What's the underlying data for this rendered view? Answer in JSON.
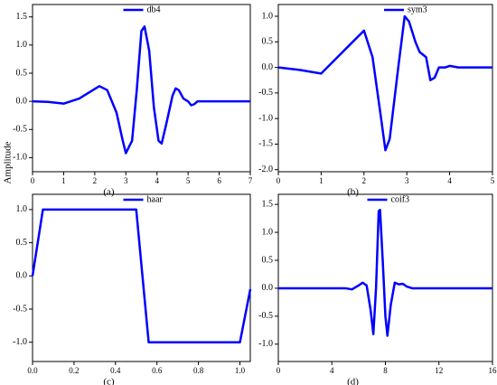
{
  "ylabel": "Amplitude",
  "chart_data": [
    {
      "type": "line",
      "caption": "(a)",
      "legend": "upper center",
      "xlim": [
        0,
        7
      ],
      "xticks": [
        0,
        1,
        2,
        3,
        4,
        5,
        6,
        7
      ],
      "ylim": [
        -1.25,
        1.72
      ],
      "yticks": [
        {
          "value": -1,
          "label": "-1.0"
        },
        -0.5,
        {
          "value": 0,
          "label": "0.0"
        },
        0.5,
        {
          "value": 1,
          "label": "1.0"
        },
        1.5
      ],
      "x": [
        0,
        0.5,
        1,
        1.5,
        2,
        2.15,
        2.4,
        2.7,
        2.9,
        3.0,
        3.2,
        3.35,
        3.5,
        3.6,
        3.75,
        3.9,
        4.05,
        4.15,
        4.3,
        4.5,
        4.6,
        4.7,
        4.85,
        5.0,
        5.1,
        5.2,
        5.3,
        6,
        7
      ],
      "series": [
        {
          "name": "db4",
          "color": "#0000ff",
          "values": [
            0,
            -0.01,
            -0.04,
            0.05,
            0.22,
            0.27,
            0.2,
            -0.2,
            -0.7,
            -0.92,
            -0.7,
            0.2,
            1.25,
            1.33,
            0.9,
            -0.1,
            -0.7,
            -0.75,
            -0.4,
            0.1,
            0.23,
            0.2,
            0.05,
            0.0,
            -0.07,
            -0.05,
            0.0,
            0,
            0
          ]
        }
      ]
    },
    {
      "type": "line",
      "caption": "(b)",
      "legend": "upper right",
      "xlim": [
        0,
        5
      ],
      "xticks": [
        0,
        1,
        2,
        3,
        4,
        5
      ],
      "ylim": [
        -2.04,
        1.23
      ],
      "yticks": [
        {
          "value": -2,
          "label": "-2.0"
        },
        -1.5,
        {
          "value": -1,
          "label": "-1.0"
        },
        -0.5,
        {
          "value": 0,
          "label": "0.0"
        },
        0.5,
        {
          "value": 1,
          "label": "1.0"
        }
      ],
      "x": [
        0,
        0.5,
        1,
        1.5,
        2,
        2.2,
        2.4,
        2.5,
        2.6,
        2.8,
        2.95,
        3.05,
        3.2,
        3.3,
        3.45,
        3.55,
        3.65,
        3.75,
        3.9,
        4,
        4.2,
        4.5,
        5
      ],
      "series": [
        {
          "name": "sym3",
          "color": "#0000ff",
          "values": [
            0,
            -0.05,
            -0.12,
            0.3,
            0.72,
            0.2,
            -1.0,
            -1.62,
            -1.4,
            0,
            1.0,
            0.9,
            0.5,
            0.3,
            0.2,
            -0.25,
            -0.2,
            0,
            0,
            0.03,
            0,
            0,
            0
          ]
        }
      ]
    },
    {
      "type": "line",
      "caption": "(c)",
      "legend": "upper center",
      "xlim": [
        0,
        1.05
      ],
      "xticks": [
        {
          "value": 0,
          "label": "0.0"
        },
        0.2,
        0.4,
        0.6,
        0.8,
        {
          "value": 1,
          "label": "1.0"
        }
      ],
      "ylim": [
        -1.29,
        1.23
      ],
      "yticks": [
        {
          "value": -1,
          "label": "-1.0"
        },
        -0.5,
        {
          "value": 0,
          "label": "0.0"
        },
        0.5,
        {
          "value": 1,
          "label": "1.0"
        }
      ],
      "x": [
        0,
        0.05,
        0.5,
        0.56,
        1.0,
        1.05
      ],
      "series": [
        {
          "name": "haar",
          "color": "#0000ff",
          "values": [
            0,
            1,
            1,
            -1,
            -1,
            -0.2
          ]
        }
      ]
    },
    {
      "type": "line",
      "caption": "(d)",
      "legend": "upper center",
      "xlim": [
        0,
        16
      ],
      "xticks": [
        0,
        4,
        8,
        12,
        16
      ],
      "ylim": [
        -1.31,
        1.68
      ],
      "yticks": [
        {
          "value": -1,
          "label": "-1.0"
        },
        -0.5,
        {
          "value": 0,
          "label": "0.0"
        },
        0.5,
        {
          "value": 1,
          "label": "1.0"
        },
        1.5
      ],
      "x": [
        0,
        5,
        5.5,
        6,
        6.3,
        6.6,
        6.9,
        7.1,
        7.3,
        7.5,
        7.6,
        7.8,
        8.0,
        8.15,
        8.4,
        8.7,
        9.0,
        9.3,
        9.6,
        10,
        16
      ],
      "series": [
        {
          "name": "coif3",
          "color": "#0000ff",
          "values": [
            0,
            0,
            -0.02,
            0.05,
            0.1,
            0.05,
            -0.4,
            -0.82,
            0,
            1.38,
            1.4,
            0.5,
            -0.5,
            -0.85,
            -0.3,
            0.1,
            0.07,
            0.08,
            0.03,
            0,
            0
          ]
        }
      ]
    }
  ]
}
